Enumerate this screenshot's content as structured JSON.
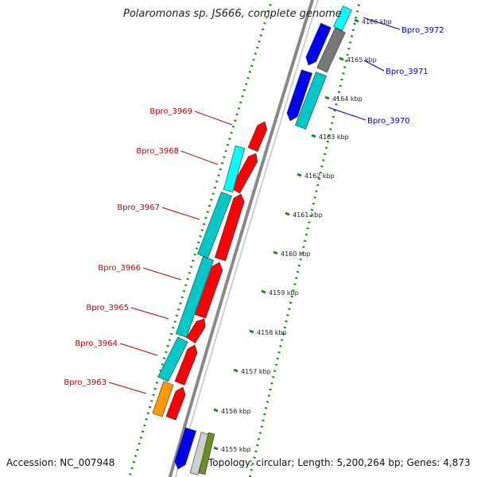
{
  "header": {
    "title": "Polaromonas sp. JS666, complete genome"
  },
  "footer": {
    "accession": "Accession: NC_007948",
    "stats": "Topology: circular; Length: 5,200,264 bp; Genes: 4,873"
  },
  "scale_ticks": [
    "4155 kbp",
    "4156 kbp",
    "4157 kbp",
    "4158 kbp",
    "4159 kbp",
    "4160 kbp",
    "4161 kbp",
    "4162 kbp",
    "4163 kbp",
    "4164 kbp",
    "4165 kbp",
    "4166 kbp"
  ],
  "reverse_genes": [
    {
      "label": "Bpro_3969"
    },
    {
      "label": "Bpro_3968"
    },
    {
      "label": "Bpro_3967"
    },
    {
      "label": "Bpro_3966"
    },
    {
      "label": "Bpro_3965"
    },
    {
      "label": "Bpro_3964"
    },
    {
      "label": "Bpro_3963"
    }
  ],
  "forward_genes": [
    {
      "label": "Bpro_3972"
    },
    {
      "label": "Bpro_3971"
    },
    {
      "label": "Bpro_3970"
    }
  ],
  "colors": {
    "reverse_gene": "#ff0000",
    "forward_gene": "#0000ee",
    "reverse_label": "#cc0000",
    "forward_label": "#0000cc",
    "cds_cyan": "#00c8c8",
    "cds_cyan_light": "#00ffff",
    "orange": "#ff9900",
    "gray": "#777777",
    "olive": "#6b8e23",
    "backbone": "#888888",
    "dotted_ring": "#1a8c1a"
  }
}
